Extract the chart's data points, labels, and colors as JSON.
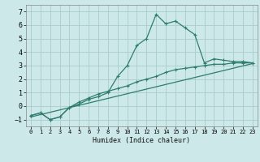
{
  "xlabel": "Humidex (Indice chaleur)",
  "background_color": "#cce8e8",
  "grid_color": "#aacccc",
  "line_color": "#2e7d6e",
  "xlim": [
    -0.5,
    23.5
  ],
  "ylim": [
    -1.5,
    7.5
  ],
  "xticks": [
    0,
    1,
    2,
    3,
    4,
    5,
    6,
    7,
    8,
    9,
    10,
    11,
    12,
    13,
    14,
    15,
    16,
    17,
    18,
    19,
    20,
    21,
    22,
    23
  ],
  "yticks": [
    -1,
    0,
    1,
    2,
    3,
    4,
    5,
    6,
    7
  ],
  "line1_x": [
    0,
    1,
    2,
    3,
    4,
    5,
    6,
    7,
    8,
    9,
    10,
    11,
    12,
    13,
    14,
    15,
    16,
    17,
    18,
    19,
    20,
    21,
    22,
    23
  ],
  "line1_y": [
    -0.7,
    -0.5,
    -1.0,
    -0.8,
    -0.1,
    0.15,
    0.5,
    0.7,
    1.0,
    2.2,
    3.0,
    4.5,
    5.0,
    6.8,
    6.1,
    6.3,
    5.8,
    5.3,
    3.2,
    3.5,
    3.4,
    3.3,
    3.3,
    3.2
  ],
  "line2_x": [
    0,
    1,
    2,
    3,
    4,
    5,
    6,
    7,
    8,
    9,
    10,
    11,
    12,
    13,
    14,
    15,
    16,
    17,
    18,
    19,
    20,
    21,
    22,
    23
  ],
  "line2_y": [
    -0.7,
    -0.5,
    -1.0,
    -0.8,
    -0.1,
    0.3,
    0.6,
    0.9,
    1.1,
    1.3,
    1.5,
    1.8,
    2.0,
    2.2,
    2.5,
    2.7,
    2.8,
    2.9,
    3.0,
    3.1,
    3.1,
    3.2,
    3.2,
    3.2
  ],
  "line3_x": [
    0,
    23
  ],
  "line3_y": [
    -0.8,
    3.15
  ],
  "marker": "+",
  "markersize": 3,
  "linewidth": 0.9
}
